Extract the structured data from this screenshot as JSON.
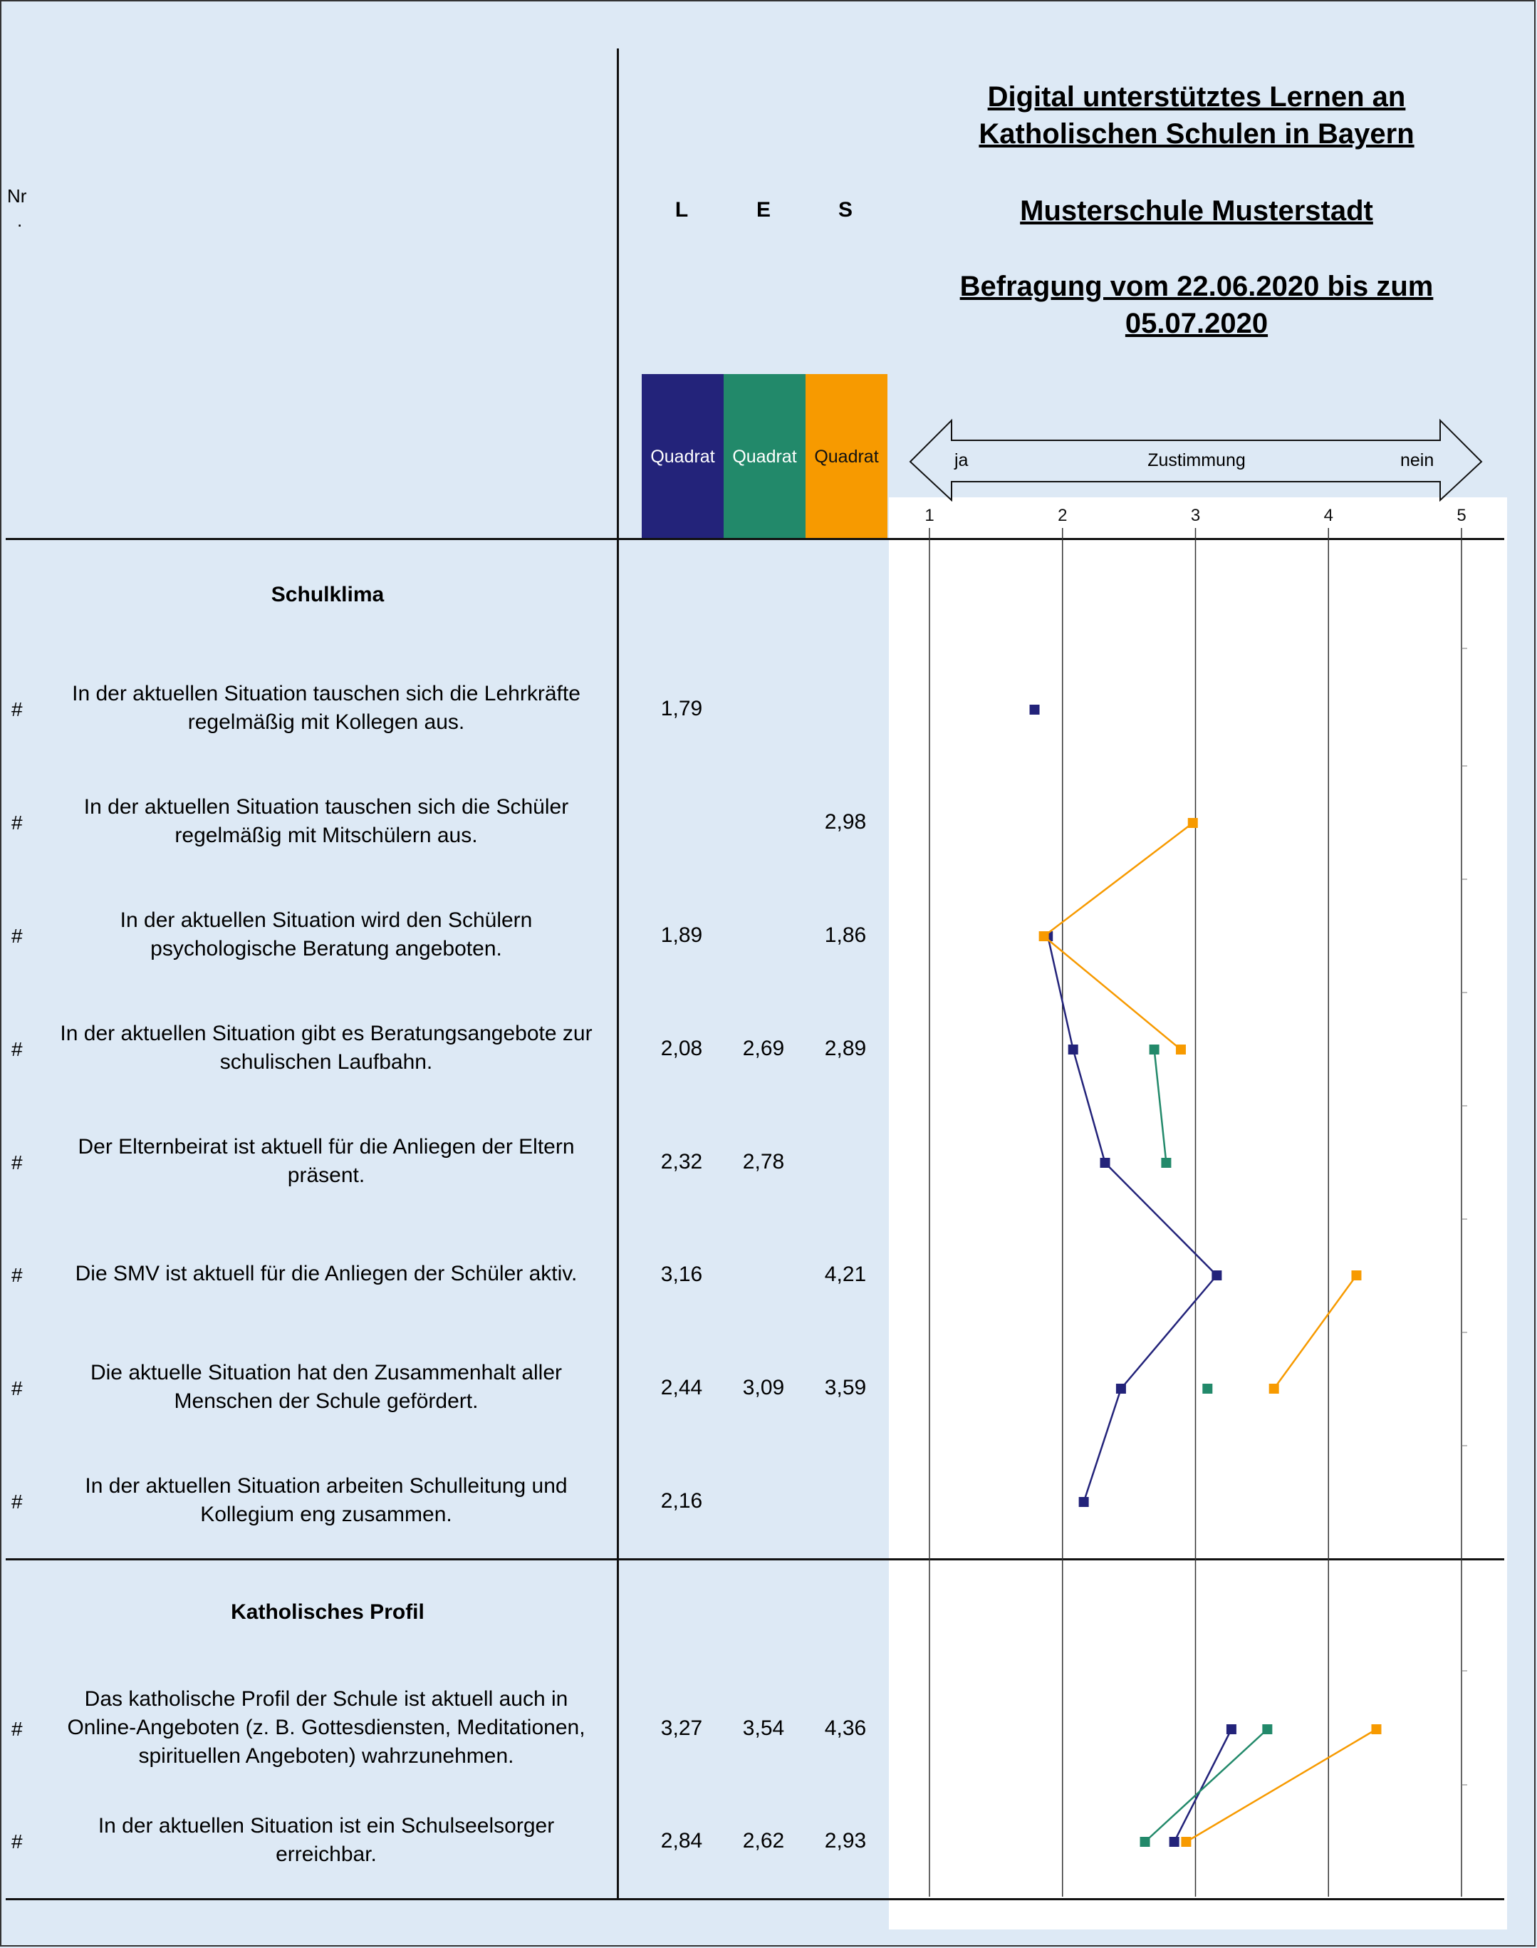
{
  "header": {
    "nr_label": "Nr",
    "nr_dot": ".",
    "col_l": "L",
    "col_e": "E",
    "col_s": "S",
    "title_line1": "Digital unterstütztes Lernen an",
    "title_line2": "Katholischen Schulen in Bayern",
    "school": "Musterschule Musterstadt",
    "survey_line1": "Befragung vom 22.06.2020 bis zum",
    "survey_line2": "05.07.2020"
  },
  "legend": {
    "l_label": "Quadrat",
    "e_label": "Quadrat",
    "s_label": "Quadrat",
    "colors": {
      "L": "#23237a",
      "E": "#22896a",
      "S": "#f79a00"
    }
  },
  "scale": {
    "left": "ja",
    "center": "Zustimmung",
    "right": "nein"
  },
  "sections": [
    {
      "title": "Schulklima",
      "rows": [
        {
          "hash": "#",
          "text1": "In der aktuellen Situation tauschen sich die Lehrkräfte",
          "text2": "regelmäßig mit Kollegen aus.",
          "text3": "",
          "L": "1,79",
          "E": "",
          "S": ""
        },
        {
          "hash": "#",
          "text1": "In der aktuellen Situation tauschen sich die Schüler",
          "text2": "regelmäßig mit Mitschülern aus.",
          "text3": "",
          "L": "",
          "E": "",
          "S": "2,98"
        },
        {
          "hash": "#",
          "text1": "In der aktuellen Situation wird den Schülern",
          "text2": "psychologische Beratung angeboten.",
          "text3": "",
          "L": "1,89",
          "E": "",
          "S": "1,86"
        },
        {
          "hash": "#",
          "text1": "In der aktuellen Situation gibt es Beratungsangebote zur",
          "text2": "schulischen Laufbahn.",
          "text3": "",
          "L": "2,08",
          "E": "2,69",
          "S": "2,89"
        },
        {
          "hash": "#",
          "text1": "Der Elternbeirat ist aktuell für die Anliegen der Eltern",
          "text2": "präsent.",
          "text3": "",
          "L": "2,32",
          "E": "2,78",
          "S": ""
        },
        {
          "hash": "#",
          "text1": "Die SMV ist aktuell für die Anliegen der Schüler aktiv.",
          "text2": "",
          "text3": "",
          "L": "3,16",
          "E": "",
          "S": "4,21"
        },
        {
          "hash": "#",
          "text1": "Die aktuelle Situation hat den Zusammenhalt aller",
          "text2": "Menschen der Schule gefördert.",
          "text3": "",
          "L": "2,44",
          "E": "3,09",
          "S": "3,59"
        },
        {
          "hash": "#",
          "text1": "In der aktuellen Situation arbeiten Schulleitung und",
          "text2": "Kollegium eng zusammen.",
          "text3": "",
          "L": "2,16",
          "E": "",
          "S": ""
        }
      ]
    },
    {
      "title": "Katholisches Profil",
      "rows": [
        {
          "hash": "#",
          "text1": "Das katholische Profil der Schule ist aktuell auch in",
          "text2": "Online-Angeboten (z. B. Gottesdiensten, Meditationen,",
          "text3": "spirituellen Angeboten) wahrzunehmen.",
          "L": "3,27",
          "E": "3,54",
          "S": "4,36"
        },
        {
          "hash": "#",
          "text1": "In der aktuellen Situation ist ein Schulseelsorger",
          "text2": "erreichbar.",
          "text3": "",
          "L": "2,84",
          "E": "2,62",
          "S": "2,93"
        }
      ]
    }
  ],
  "chart_data": {
    "type": "line",
    "orientation": "horizontal-values",
    "xlim": [
      1,
      5
    ],
    "xticks": [
      "1",
      "2",
      "3",
      "4",
      "5"
    ],
    "categories": [
      "Lehrkräfte tauschen sich mit Kollegen aus",
      "Schüler tauschen sich mit Mitschülern aus",
      "Psychologische Beratung",
      "Beratungsangebote zur Laufbahn",
      "Elternbeirat präsent",
      "SMV aktiv",
      "Zusammenhalt gefördert",
      "Schulleitung und Kollegium",
      "Katholisches Profil online",
      "Schulseelsorger erreichbar"
    ],
    "section_break_after": 7,
    "series": [
      {
        "key": "L",
        "color": "#23237a",
        "values": [
          1.79,
          null,
          1.89,
          2.08,
          2.32,
          3.16,
          2.44,
          2.16,
          3.27,
          2.84
        ]
      },
      {
        "key": "E",
        "color": "#22896a",
        "values": [
          null,
          null,
          null,
          2.69,
          2.78,
          null,
          3.09,
          null,
          3.54,
          2.62
        ]
      },
      {
        "key": "S",
        "color": "#f79a00",
        "values": [
          null,
          2.98,
          1.86,
          2.89,
          null,
          4.21,
          3.59,
          null,
          4.36,
          2.93
        ]
      }
    ],
    "grid": true
  }
}
